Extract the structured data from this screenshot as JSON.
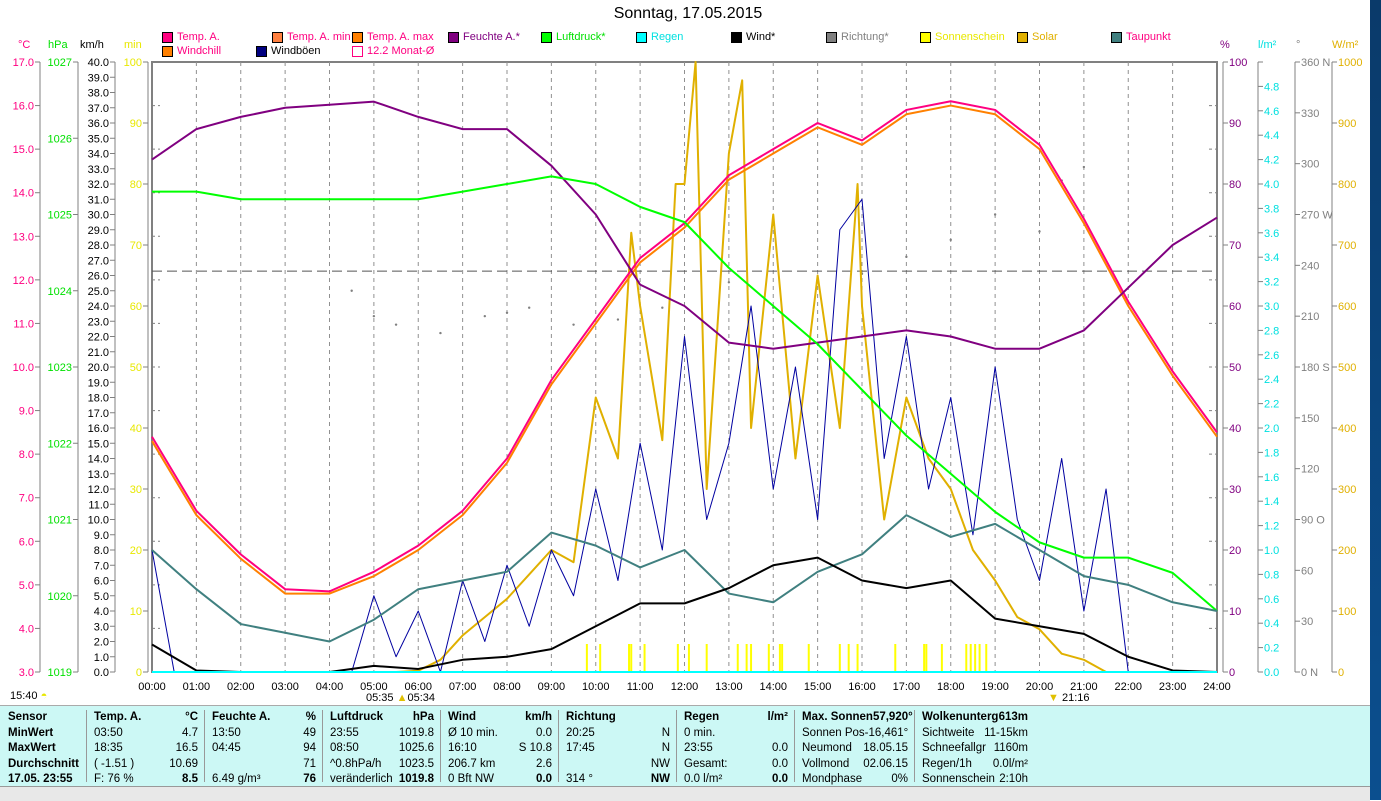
{
  "title": "Sonntag, 17.05.2015",
  "legend": [
    {
      "label": "Temp. A.",
      "color": "#ff0080",
      "text_color": "#ff0080"
    },
    {
      "label": "Temp. A. min",
      "color": "#ff8040",
      "text_color": "#ff0080"
    },
    {
      "label": "Temp. A. max",
      "color": "#ff8000",
      "text_color": "#ff0080"
    },
    {
      "label": "Feuchte A.*",
      "color": "#800080",
      "text_color": "#800080"
    },
    {
      "label": "Luftdruck*",
      "color": "#00ff00",
      "text_color": "#00e000"
    },
    {
      "label": "Regen",
      "color": "#00ffff",
      "text_color": "#00e0e0"
    },
    {
      "label": "Wind*",
      "color": "#000000",
      "text_color": "#000000"
    },
    {
      "label": "Richtung*",
      "color": "#808080",
      "text_color": "#808080"
    },
    {
      "label": "Sonnenschein",
      "color": "#ffff00",
      "text_color": "#e8e800"
    },
    {
      "label": "Solar",
      "color": "#e0b000",
      "text_color": "#e0b000"
    },
    {
      "label": "Taupunkt",
      "color": "#408080",
      "text_color": "#ff0080"
    },
    {
      "label": "Windchill",
      "color": "#ff8000",
      "text_color": "#ff0080"
    },
    {
      "label": "Windböen",
      "color": "#000080",
      "text_color": "#000000"
    },
    {
      "label": "12.2 Monat-Ø",
      "color": "#ff0080",
      "text_color": "#ff0080"
    }
  ],
  "axis_units": {
    "left": [
      "°C",
      "hPa",
      "km/h",
      "min"
    ],
    "right": [
      "%",
      "l/m²",
      "°",
      "W/m²"
    ]
  },
  "time_marks": {
    "moon": "15:40",
    "sunrise_a": "05:35",
    "sunrise_b": "05:34",
    "sunset": "21:16"
  },
  "chart_data": {
    "type": "line",
    "title": "Sonntag, 17.05.2015",
    "xlabel": "",
    "xlim": [
      0,
      24
    ],
    "x_ticks": [
      "00:00",
      "01:00",
      "02:00",
      "03:00",
      "04:00",
      "05:00",
      "06:00",
      "07:00",
      "08:00",
      "09:00",
      "10:00",
      "11:00",
      "12:00",
      "13:00",
      "14:00",
      "15:00",
      "16:00",
      "17:00",
      "18:00",
      "19:00",
      "20:00",
      "21:00",
      "22:00",
      "23:00",
      "24:00"
    ],
    "axes": {
      "temp": {
        "unit": "°C",
        "range": [
          3,
          17
        ],
        "step": 1
      },
      "pressure": {
        "unit": "hPa",
        "range": [
          1019,
          1027
        ],
        "step": 1
      },
      "wind": {
        "unit": "km/h",
        "range": [
          0,
          40
        ],
        "step": 1
      },
      "sun_min": {
        "unit": "min",
        "range": [
          0,
          100
        ],
        "step": 10
      },
      "humidity": {
        "unit": "%",
        "range": [
          0,
          100
        ],
        "step": 10
      },
      "rain": {
        "unit": "l/m²",
        "range": [
          0,
          5
        ],
        "step": 0.2,
        "max_label": 4.8
      },
      "direction": {
        "unit": "°",
        "range": [
          0,
          360
        ],
        "step": 30,
        "compass": {
          "0": "N",
          "90": "O",
          "180": "S",
          "270": "W",
          "360": "N"
        }
      },
      "solar": {
        "unit": "W/m²",
        "range": [
          0,
          1000
        ],
        "step": 100
      }
    },
    "hours": [
      0,
      1,
      2,
      3,
      4,
      5,
      6,
      7,
      8,
      9,
      10,
      11,
      12,
      13,
      14,
      15,
      16,
      17,
      18,
      19,
      20,
      21,
      22,
      23,
      24
    ],
    "series": [
      {
        "name": "Temp. A.",
        "axis": "temp",
        "color": "#ff0080",
        "values": [
          8.4,
          6.7,
          5.7,
          4.9,
          4.85,
          5.3,
          5.9,
          6.7,
          7.9,
          9.7,
          11.1,
          12.5,
          13.3,
          14.4,
          15.0,
          15.6,
          15.2,
          15.9,
          16.1,
          15.9,
          15.1,
          13.4,
          11.5,
          9.9,
          8.5
        ]
      },
      {
        "name": "Windchill",
        "axis": "temp",
        "color": "#ff8000",
        "values": [
          8.3,
          6.6,
          5.6,
          4.8,
          4.8,
          5.2,
          5.8,
          6.6,
          7.8,
          9.6,
          11.0,
          12.4,
          13.2,
          14.3,
          14.9,
          15.5,
          15.1,
          15.8,
          16.0,
          15.8,
          15.0,
          13.3,
          11.4,
          9.8,
          8.4
        ]
      },
      {
        "name": "Feuchte A.*",
        "axis": "humidity",
        "color": "#800080",
        "values": [
          84,
          89,
          91,
          92.5,
          93,
          93.5,
          91,
          89,
          89,
          83,
          75,
          63.5,
          60,
          54,
          53,
          54,
          55,
          56,
          55,
          53,
          53,
          56,
          63,
          70,
          74.5
        ]
      },
      {
        "name": "Luftdruck*",
        "axis": "pressure",
        "color": "#00ff00",
        "values": [
          1025.3,
          1025.3,
          1025.2,
          1025.2,
          1025.2,
          1025.2,
          1025.2,
          1025.3,
          1025.4,
          1025.5,
          1025.4,
          1025.1,
          1024.9,
          1024.3,
          1023.8,
          1023.3,
          1022.7,
          1022.1,
          1021.6,
          1021.1,
          1020.7,
          1020.5,
          1020.5,
          1020.3,
          1019.8
        ]
      },
      {
        "name": "Taupunkt",
        "axis": "temp",
        "color": "#408080",
        "values": [
          5.8,
          4.9,
          4.1,
          3.9,
          3.7,
          4.2,
          4.9,
          5.1,
          5.3,
          6.2,
          5.9,
          5.4,
          5.8,
          4.8,
          4.6,
          5.3,
          5.7,
          6.6,
          6.1,
          6.4,
          5.8,
          5.2,
          5.0,
          4.6,
          4.4
        ]
      },
      {
        "name": "Wind*",
        "axis": "wind",
        "color": "#000000",
        "values": [
          1.8,
          0.1,
          0,
          0,
          0,
          0.4,
          0.2,
          0.8,
          1.0,
          1.5,
          3.0,
          4.5,
          4.5,
          5.5,
          7.0,
          7.5,
          6.0,
          5.5,
          6.0,
          3.5,
          3.0,
          2.5,
          1.0,
          0.1,
          0
        ]
      }
    ],
    "half_hours": [
      0,
      0.5,
      1,
      1.5,
      2,
      2.5,
      3,
      3.5,
      4,
      4.5,
      5,
      5.5,
      6,
      6.5,
      7,
      7.5,
      8,
      8.5,
      9,
      9.5,
      10,
      10.5,
      11,
      11.5,
      12,
      12.5,
      13,
      13.5,
      14,
      14.5,
      15,
      15.5,
      16,
      16.5,
      17,
      17.5,
      18,
      18.5,
      19,
      19.5,
      20,
      20.5,
      21,
      21.5,
      22,
      22.5,
      23,
      23.5,
      24
    ],
    "gusts": {
      "name": "Windböen",
      "axis": "wind",
      "color": "#0000a0",
      "values": [
        8,
        0,
        0,
        0,
        0,
        0,
        0,
        0,
        0,
        0,
        5,
        1,
        4,
        0,
        6,
        2,
        7,
        3,
        8,
        5,
        12,
        6,
        15,
        8,
        22,
        10,
        15,
        24,
        12,
        20,
        10,
        29,
        31,
        14,
        22,
        12,
        18,
        9,
        20,
        10,
        6,
        14,
        4,
        12,
        0,
        0,
        0,
        0,
        0
      ]
    },
    "solar": {
      "name": "Solar",
      "axis": "solar",
      "color": "#e0b000",
      "values": [
        0,
        0,
        0,
        0,
        0,
        0,
        0,
        0,
        0,
        0,
        0,
        0,
        2,
        20,
        60,
        90,
        120,
        160,
        200,
        180,
        450,
        350,
        600,
        380,
        800,
        300,
        850,
        400,
        750,
        350,
        650,
        400,
        600,
        250,
        450,
        350,
        300,
        200,
        150,
        90,
        70,
        30,
        20,
        0,
        0,
        0,
        0,
        0,
        0
      ]
    },
    "solar_peaks": [
      {
        "x": 12.25,
        "y": 1000
      },
      {
        "x": 13.3,
        "y": 970
      },
      {
        "x": 11.8,
        "y": 800
      },
      {
        "x": 15.9,
        "y": 800
      },
      {
        "x": 10.8,
        "y": 720
      }
    ],
    "sunshine_times": [
      9.8,
      10.1,
      10.75,
      10.8,
      11.1,
      11.85,
      12.1,
      12.5,
      13.2,
      13.4,
      13.5,
      13.9,
      14.15,
      14.2,
      14.8,
      15.5,
      15.7,
      15.9,
      16.75,
      17.4,
      17.45,
      17.8,
      18.35,
      18.45,
      18.55,
      18.65,
      18.8
    ],
    "direction_points": [
      [
        4.5,
        225
      ],
      [
        5,
        210
      ],
      [
        5.5,
        205
      ],
      [
        6.5,
        200
      ],
      [
        7.5,
        210
      ],
      [
        8,
        212
      ],
      [
        8.5,
        215
      ],
      [
        9.5,
        205
      ],
      [
        10.5,
        208
      ],
      [
        11.5,
        215
      ],
      [
        13,
        230
      ],
      [
        14,
        215
      ],
      [
        15,
        230
      ],
      [
        16,
        235
      ],
      [
        17,
        245
      ],
      [
        18,
        255
      ],
      [
        19,
        270
      ],
      [
        20,
        260
      ],
      [
        20.5,
        290
      ],
      [
        21,
        298
      ]
    ],
    "month_avg": {
      "label": "12.2 Monat-Ø",
      "value": 12.2,
      "axis": "temp"
    }
  },
  "table": {
    "sensor": [
      "Sensor",
      "MinWert",
      "MaxWert",
      "Durchschnitt",
      "17.05. 23:55"
    ],
    "temp": {
      "head": [
        "Temp. A.",
        "°C"
      ],
      "rows": [
        [
          "03:50",
          "4.7"
        ],
        [
          "18:35",
          "16.5"
        ],
        [
          "( -1.51 )",
          "10.69"
        ],
        [
          "F: 76 %",
          "8.5"
        ]
      ]
    },
    "humidity": {
      "head": [
        "Feuchte A.",
        "%"
      ],
      "rows": [
        [
          "13:50",
          "49"
        ],
        [
          "04:45",
          "94"
        ],
        [
          "",
          "71"
        ],
        [
          "6.49 g/m³",
          "76"
        ]
      ]
    },
    "pressure": {
      "head": [
        "Luftdruck",
        "hPa"
      ],
      "rows": [
        [
          "23:55",
          "1019.8"
        ],
        [
          "08:50",
          "1025.6"
        ],
        [
          "^0.8hPa/h",
          "1023.5"
        ],
        [
          "veränderlich",
          "1019.8"
        ]
      ]
    },
    "wind": {
      "head": [
        "Wind",
        "km/h"
      ],
      "rows": [
        [
          "Ø 10 min.",
          "0.0"
        ],
        [
          "16:10",
          "S 10.8"
        ],
        [
          "206.7 km",
          "2.6"
        ],
        [
          "0 Bft NW",
          "0.0"
        ]
      ]
    },
    "direction": {
      "head": [
        "Richtung",
        ""
      ],
      "rows": [
        [
          "20:25",
          "N"
        ],
        [
          "17:45",
          "N"
        ],
        [
          "",
          "NW"
        ],
        [
          "314 °",
          "NW"
        ]
      ]
    },
    "rain": {
      "head": [
        "Regen",
        "l/m²"
      ],
      "rows": [
        [
          "0 min.",
          ""
        ],
        [
          "23:55",
          "0.0"
        ],
        [
          "Gesamt:",
          "0.0"
        ],
        [
          "0.0 l/m²",
          "0.0"
        ]
      ]
    },
    "astro": [
      [
        "Max. Sonnen",
        "57,920°"
      ],
      [
        "Sonnen Pos",
        "-16,461°"
      ],
      [
        "Neumond",
        "18.05.15"
      ],
      [
        "Vollmond",
        "02.06.15"
      ],
      [
        "Mondphase",
        "0%"
      ]
    ],
    "misc": [
      [
        "Wolkenunterg",
        "613m"
      ],
      [
        "Sichtweite",
        "11-15km"
      ],
      [
        "Schneefallgr",
        "1160m"
      ],
      [
        "Regen/1h",
        "0.0l/m²"
      ],
      [
        "Sonnenschein",
        "2:10h"
      ]
    ]
  }
}
